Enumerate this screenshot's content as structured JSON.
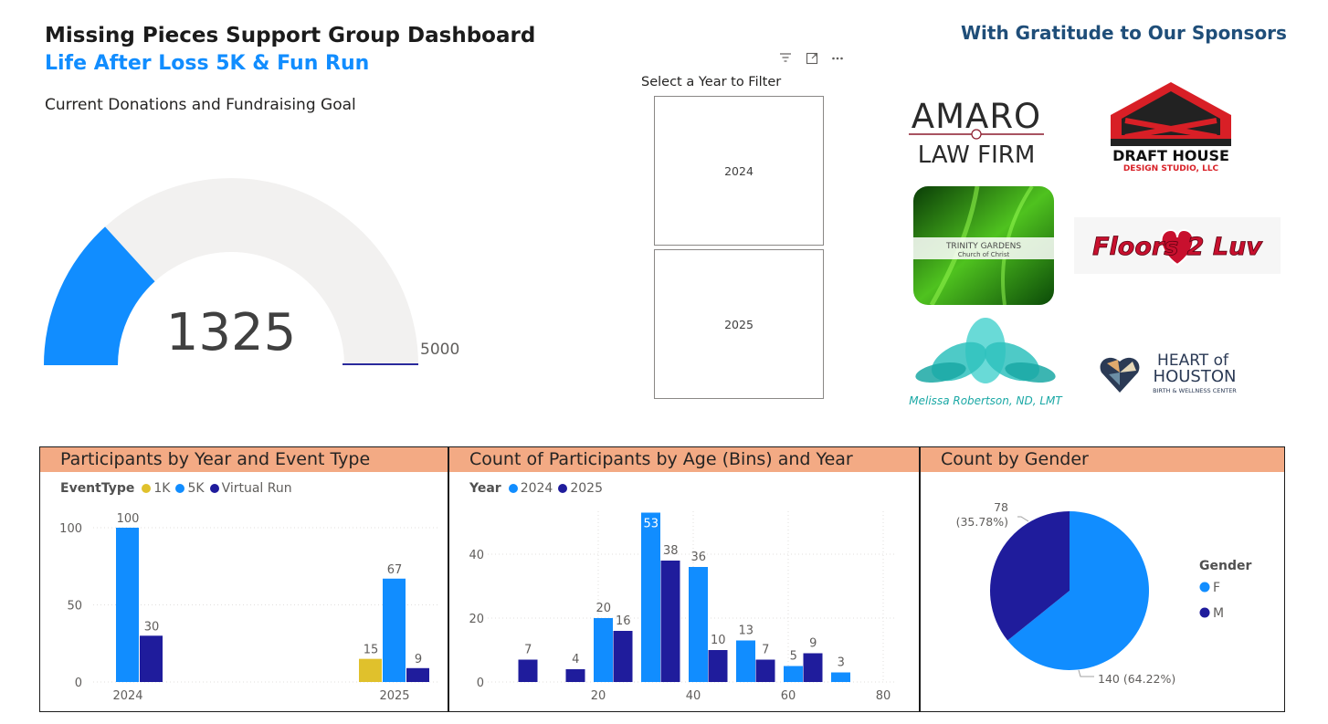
{
  "header": {
    "title": "Missing Pieces Support Group Dashboard",
    "subtitle": "Life After Loss 5K & Fun Run"
  },
  "gauge": {
    "title": "Current Donations and Fundraising Goal",
    "value": 1325,
    "max": 5000,
    "min": 0,
    "value_label": "1325",
    "max_label": "5000",
    "fill_color": "#118dff",
    "track_color": "#f2f1f0",
    "target_color": "#2a2a9c"
  },
  "slicer": {
    "title": "Select a Year to Filter",
    "options": [
      "2024",
      "2025"
    ],
    "icons": [
      "filter-icon",
      "focus-mode-icon",
      "more-options-icon"
    ]
  },
  "sponsors": {
    "title": "With Gratitude to Our Sponsors",
    "amaro": {
      "line1": "AMARO",
      "line2": "LAW FIRM"
    },
    "draft_house": {
      "line1": "DRAFT HOUSE",
      "line2": "DESIGN STUDIO, LLC"
    },
    "trinity": {
      "line1": "TRINITY GARDENS",
      "line2": "Church of Christ"
    },
    "floors": {
      "text": "Floors 2 Luv"
    },
    "melissa": {
      "text": "Melissa Robertson, ND, LMT"
    },
    "heart": {
      "line1": "HEART of",
      "line2": "HOUSTON",
      "line3": "BIRTH & WELLNESS CENTER"
    }
  },
  "chart_data": [
    {
      "type": "bar",
      "title": "Participants by Year and Event Type",
      "legend_title": "EventType",
      "legend_position": "top-left",
      "categories": [
        "2024",
        "2025"
      ],
      "series": [
        {
          "name": "1K",
          "color": "#e0c12c",
          "values": [
            null,
            15
          ]
        },
        {
          "name": "5K",
          "color": "#118dff",
          "values": [
            100,
            67
          ]
        },
        {
          "name": "Virtual Run",
          "color": "#1f1c9c",
          "values": [
            30,
            9
          ]
        }
      ],
      "yticks": [
        0,
        50,
        100
      ],
      "ylim": [
        0,
        110
      ],
      "grid": true
    },
    {
      "type": "bar",
      "title": "Count of Participants by Age (Bins) and Year",
      "legend_title": "Year",
      "legend_position": "top-left",
      "xticks": [
        20,
        40,
        60,
        80
      ],
      "xlim": [
        0,
        80
      ],
      "yticks": [
        0,
        20,
        40
      ],
      "ylim": [
        0,
        55
      ],
      "bin_width": 10,
      "series": [
        {
          "name": "2024",
          "color": "#118dff",
          "points": [
            [
              20,
              20
            ],
            [
              30,
              53
            ],
            [
              40,
              36
            ],
            [
              50,
              13
            ],
            [
              60,
              5
            ],
            [
              70,
              3
            ]
          ]
        },
        {
          "name": "2025",
          "color": "#1f1c9c",
          "points": [
            [
              0,
              7
            ],
            [
              10,
              4
            ],
            [
              20,
              16
            ],
            [
              30,
              38
            ],
            [
              40,
              10
            ],
            [
              50,
              7
            ],
            [
              60,
              9
            ]
          ]
        }
      ],
      "grid": true
    },
    {
      "type": "pie",
      "title": "Count by Gender",
      "legend_title": "Gender",
      "legend_position": "right",
      "slices": [
        {
          "name": "F",
          "value": 140,
          "percent": "64.22%",
          "label": "140 (64.22%)",
          "color": "#118dff"
        },
        {
          "name": "M",
          "value": 78,
          "percent": "35.78%",
          "label": "78",
          "label2": "(35.78%)",
          "color": "#1f1c9c"
        }
      ]
    }
  ]
}
